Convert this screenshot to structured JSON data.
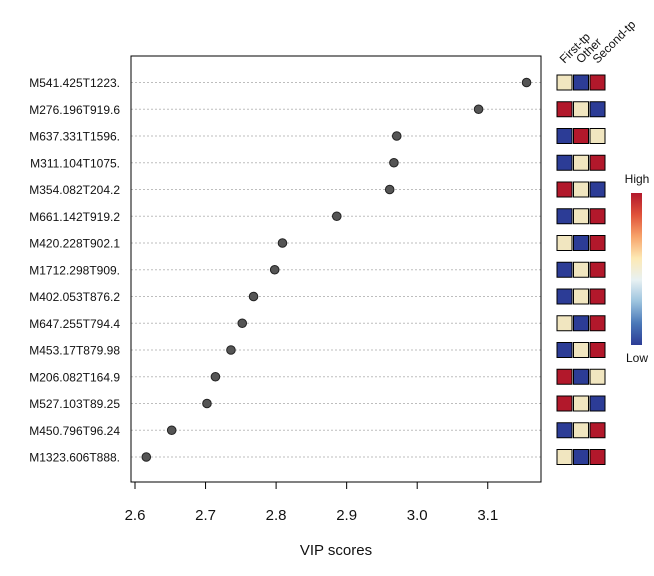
{
  "chart_data": {
    "type": "scatter",
    "title": "",
    "xlabel": "VIP scores",
    "ylabel": "",
    "xlim": [
      2.59,
      3.17
    ],
    "xticks": [
      2.6,
      2.7,
      2.8,
      2.9,
      3.0,
      3.1
    ],
    "xtick_labels": [
      "2.6",
      "2.7",
      "2.8",
      "2.9",
      "3.0",
      "3.1"
    ],
    "grid": "horizontal dotted",
    "features": [
      {
        "name": "M541.425T1223.",
        "vip": 3.155,
        "levels": [
          "mid",
          "low",
          "high"
        ]
      },
      {
        "name": "M276.196T919.6",
        "vip": 3.087,
        "levels": [
          "high",
          "mid",
          "low"
        ]
      },
      {
        "name": "M637.331T1596.",
        "vip": 2.971,
        "levels": [
          "low",
          "high",
          "mid"
        ]
      },
      {
        "name": "M311.104T1075.",
        "vip": 2.967,
        "levels": [
          "low",
          "mid",
          "high"
        ]
      },
      {
        "name": "M354.082T204.2",
        "vip": 2.961,
        "levels": [
          "high",
          "mid",
          "low"
        ]
      },
      {
        "name": "M661.142T919.2",
        "vip": 2.886,
        "levels": [
          "low",
          "mid",
          "high"
        ]
      },
      {
        "name": "M420.228T902.1",
        "vip": 2.809,
        "levels": [
          "mid",
          "low",
          "high"
        ]
      },
      {
        "name": "M1712.298T909.",
        "vip": 2.798,
        "levels": [
          "low",
          "mid",
          "high"
        ]
      },
      {
        "name": "M402.053T876.2",
        "vip": 2.768,
        "levels": [
          "low",
          "mid",
          "high"
        ]
      },
      {
        "name": "M647.255T794.4",
        "vip": 2.752,
        "levels": [
          "mid",
          "low",
          "high"
        ]
      },
      {
        "name": "M453.17T879.98",
        "vip": 2.736,
        "levels": [
          "low",
          "mid",
          "high"
        ]
      },
      {
        "name": "M206.082T164.9",
        "vip": 2.714,
        "levels": [
          "high",
          "low",
          "mid"
        ]
      },
      {
        "name": "M527.103T89.25",
        "vip": 2.702,
        "levels": [
          "high",
          "mid",
          "low"
        ]
      },
      {
        "name": "M450.796T96.24",
        "vip": 2.652,
        "levels": [
          "low",
          "mid",
          "high"
        ]
      },
      {
        "name": "M1323.606T888.",
        "vip": 2.616,
        "levels": [
          "mid",
          "low",
          "high"
        ]
      }
    ],
    "heatmap_columns": [
      "First-tp",
      "Other",
      "Second-tp"
    ],
    "legend": {
      "title_high": "High",
      "title_low": "Low",
      "placement": "right"
    },
    "colors": {
      "high": "#b2182b",
      "mid": "#f1e6c0",
      "low": "#2c3c96",
      "point": "#555555",
      "gradient": [
        "#b2182b",
        "#e0523a",
        "#f7a36a",
        "#fde9b4",
        "#e8f1f3",
        "#9cc3de",
        "#4a78b8",
        "#2c3c96"
      ]
    }
  }
}
